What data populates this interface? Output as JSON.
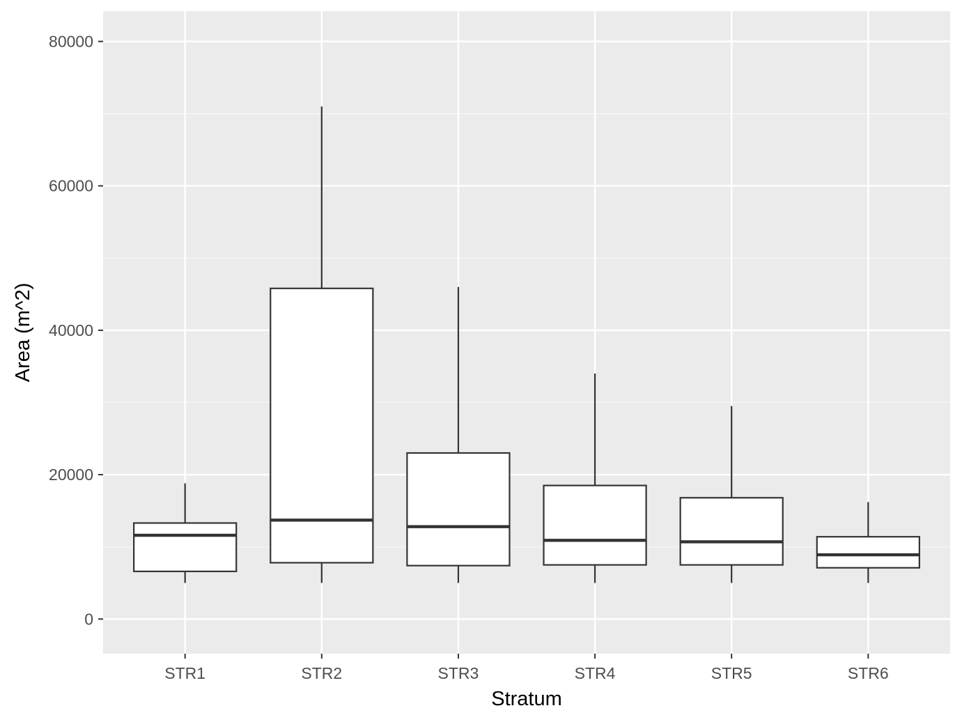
{
  "chart_data": {
    "type": "boxplot",
    "xlabel": "Stratum",
    "ylabel": "Area (m^2)",
    "ylim": [
      -4800,
      84200
    ],
    "y_ticks": [
      0,
      20000,
      40000,
      60000,
      80000
    ],
    "y_tick_labels": [
      "0",
      "20000",
      "40000",
      "60000",
      "80000"
    ],
    "grid": true,
    "colors": {
      "panel_background": "#ebebeb",
      "grid_major": "#ffffff",
      "grid_minor": "#f7f7f7",
      "box_fill": "#ffffff",
      "box_stroke": "#333333",
      "tick_label": "#4d4d4d",
      "axis_title": "#000000"
    },
    "categories": [
      "STR1",
      "STR2",
      "STR3",
      "STR4",
      "STR5",
      "STR6"
    ],
    "boxes": [
      {
        "category": "STR1",
        "min": 5000,
        "q1": 6600,
        "median": 11600,
        "q3": 13300,
        "max": 18800
      },
      {
        "category": "STR2",
        "min": 5000,
        "q1": 7800,
        "median": 13700,
        "q3": 45800,
        "max": 71000
      },
      {
        "category": "STR3",
        "min": 5000,
        "q1": 7400,
        "median": 12800,
        "q3": 23000,
        "max": 46000
      },
      {
        "category": "STR4",
        "min": 5000,
        "q1": 7500,
        "median": 10900,
        "q3": 18500,
        "max": 34000
      },
      {
        "category": "STR5",
        "min": 5000,
        "q1": 7500,
        "median": 10700,
        "q3": 16800,
        "max": 29500
      },
      {
        "category": "STR6",
        "min": 5000,
        "q1": 7100,
        "median": 8900,
        "q3": 11400,
        "max": 16200
      }
    ]
  }
}
